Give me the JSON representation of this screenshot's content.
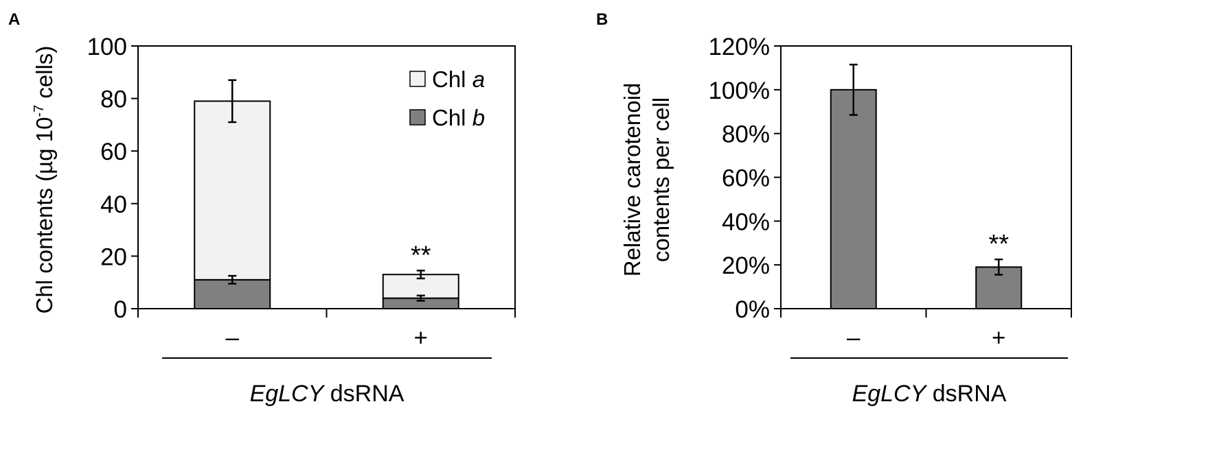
{
  "chart_data": [
    {
      "panel_label": "A",
      "type": "bar",
      "stacked": true,
      "categories": [
        "–",
        "+"
      ],
      "series": [
        {
          "name_prefix": "Chl ",
          "name_italic": "b",
          "color": "#808080",
          "values": [
            11,
            4
          ],
          "error": [
            1.5,
            1
          ]
        },
        {
          "name_prefix": "Chl ",
          "name_italic": "a",
          "color": "#f2f2f2",
          "values": [
            68,
            9
          ],
          "error": [
            8,
            1.5
          ]
        }
      ],
      "ylabel_pre": "Chl contents (µg 10",
      "ylabel_sup": "-7",
      "ylabel_post": " cells)",
      "xlabel_italic": "EgLCY",
      "xlabel_rest": " dsRNA",
      "ylim": [
        0,
        100
      ],
      "yticks": [
        "0",
        "20",
        "40",
        "60",
        "80",
        "100"
      ],
      "ytick_values": [
        0,
        20,
        40,
        60,
        80,
        100
      ],
      "significance": [
        "",
        "**"
      ],
      "legend_position": "top-right"
    },
    {
      "panel_label": "B",
      "type": "bar",
      "categories": [
        "–",
        "+"
      ],
      "series": [
        {
          "name": "",
          "color": "#808080",
          "values": [
            100,
            19
          ],
          "error": [
            11.5,
            3.5
          ]
        }
      ],
      "ylabel_lines": [
        "Relative carotenoid",
        "contents per cell"
      ],
      "xlabel_italic": "EgLCY",
      "xlabel_rest": " dsRNA",
      "ylim": [
        0,
        120
      ],
      "yticks": [
        "0%",
        "20%",
        "40%",
        "60%",
        "80%",
        "100%",
        "120%"
      ],
      "ytick_values": [
        0,
        20,
        40,
        60,
        80,
        100,
        120
      ],
      "significance": [
        "",
        "**"
      ]
    }
  ]
}
